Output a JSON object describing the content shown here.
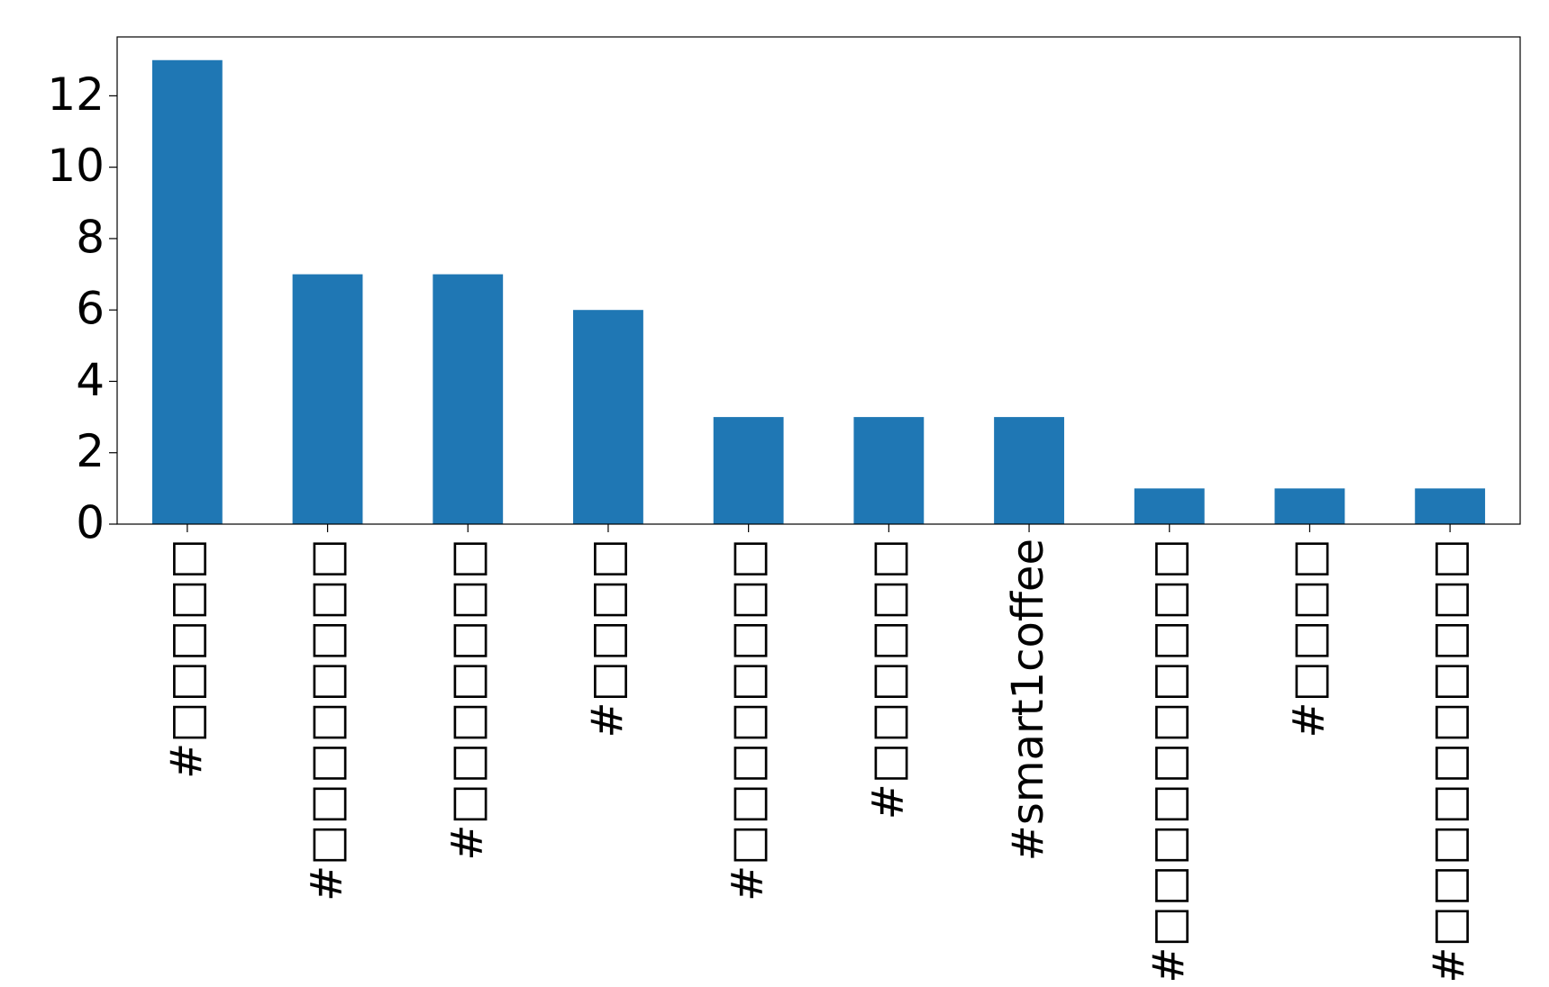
{
  "chart_data": {
    "type": "bar",
    "categories": [
      "#□□□□□",
      "#□□□□□□□□",
      "#□□□□□□□",
      "#□□□□",
      "#□□□□□□□□",
      "#□□□□□□",
      "#smart1coffee",
      "#□□□□□□□□□□",
      "#□□□□",
      "#□□□□□□□□□□"
    ],
    "values": [
      13,
      7,
      7,
      6,
      3,
      3,
      3,
      1,
      1,
      1
    ],
    "color": "#1f77b4",
    "ylim": [
      0,
      13.65
    ],
    "yticks": [
      0,
      2,
      4,
      6,
      8,
      10,
      12
    ],
    "grid": false
  }
}
